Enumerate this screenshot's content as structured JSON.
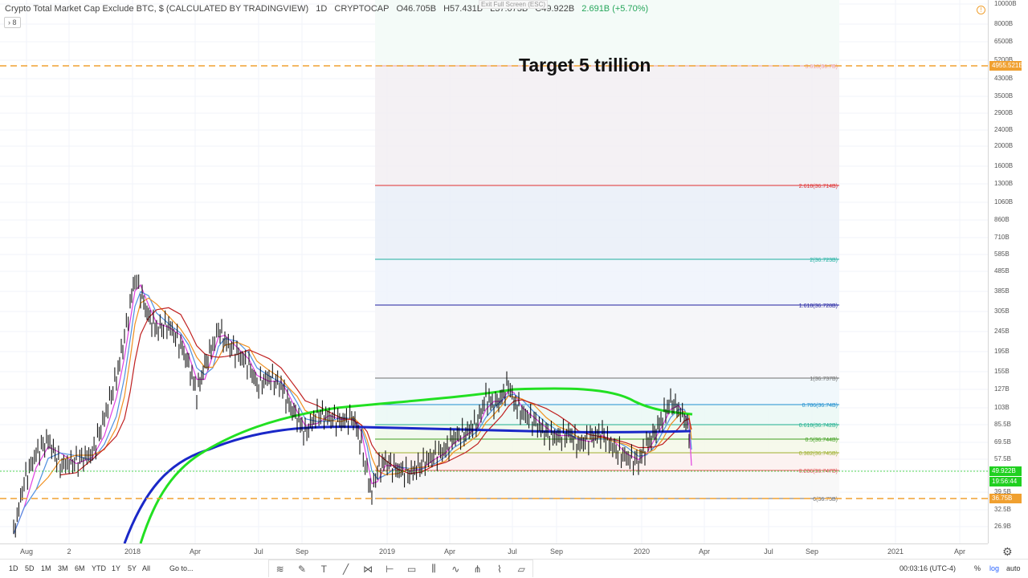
{
  "legend": {
    "symbol": "Crypto Total Market Cap Exclude BTC, $ (CALCULATED BY TRADINGVIEW)",
    "interval": "1D",
    "exchange": "CRYPTOCAP",
    "open": "O46.705B",
    "high": "H57.431B",
    "low": "L37.073B",
    "close": "C49.922B",
    "change": "2.691B (+5.70%)",
    "collapse_label": "8"
  },
  "exit_fullscreen": "Exit Full Screen (ESC)",
  "annotation": "Target 5 trillion",
  "fib_levels": [
    {
      "label": "3.618(36.7B)",
      "color": "#f0a0a0"
    },
    {
      "label": "2.618(36.714B)",
      "color": "#e03030"
    },
    {
      "label": "2(36.723B)",
      "color": "#20b0a0"
    },
    {
      "label": "1.618(36.728B)",
      "color": "#2020a0"
    },
    {
      "label": "1(36.737B)",
      "color": "#707070"
    },
    {
      "label": "0.786(36.74B)",
      "color": "#2090d0"
    },
    {
      "label": "0.618(36.742B)",
      "color": "#20b090"
    },
    {
      "label": "0.5(36.744B)",
      "color": "#40a020"
    },
    {
      "label": "0.382(36.745B)",
      "color": "#a0b030"
    },
    {
      "label": "0.236(36.747B)",
      "color": "#e06060"
    },
    {
      "label": "0(36.75B)",
      "color": "#707070"
    }
  ],
  "price_axis": {
    "ticks": [
      "10000B",
      "8000B",
      "6500B",
      "5200B",
      "4300B",
      "3500B",
      "2900B",
      "2400B",
      "2000B",
      "1600B",
      "1300B",
      "1060B",
      "860B",
      "710B",
      "585B",
      "485B",
      "385B",
      "305B",
      "245B",
      "195B",
      "155B",
      "127B",
      "103B",
      "85.5B",
      "69.5B",
      "57.5B",
      "45.5B",
      "39.5B",
      "32.5B",
      "26.9B"
    ],
    "badges": [
      {
        "text": "4955.521B",
        "color": "#f0a030"
      },
      {
        "text": "49.922B",
        "color": "#20d020"
      },
      {
        "text": "19:56:44",
        "color": "#20d020"
      },
      {
        "text": "36.75B",
        "color": "#f0a030"
      }
    ]
  },
  "time_axis": {
    "ticks": [
      "Aug",
      "2",
      "2018",
      "Apr",
      "Jul",
      "Sep",
      "2019",
      "Apr",
      "Jul",
      "Sep",
      "2020",
      "Apr",
      "Jul",
      "Sep",
      "2021",
      "Apr"
    ]
  },
  "bottom_bar": {
    "ranges": [
      "1D",
      "5D",
      "1M",
      "3M",
      "6M",
      "YTD",
      "1Y",
      "5Y",
      "All"
    ],
    "goto": "Go to...",
    "clock": "00:03:16 (UTC-4)",
    "percent": "%",
    "log": "log",
    "auto": "auto"
  },
  "tools": [
    "trend-line-tool",
    "brush-tool",
    "text-tool",
    "line-tool",
    "pattern-tool",
    "horizontal-line-tool",
    "rectangle-tool",
    "fib-tool",
    "wave-tool",
    "pitchfork-tool",
    "path-tool",
    "ruler-tool"
  ],
  "colors": {
    "ma_green": "#22e022",
    "ma_blue": "#1a28c8",
    "ma_red": "#c02020",
    "ma_orange": "#f09020",
    "ma_pink": "#e040e0",
    "ma_lightblue": "#5090e0",
    "target_dash": "#f0a030"
  }
}
